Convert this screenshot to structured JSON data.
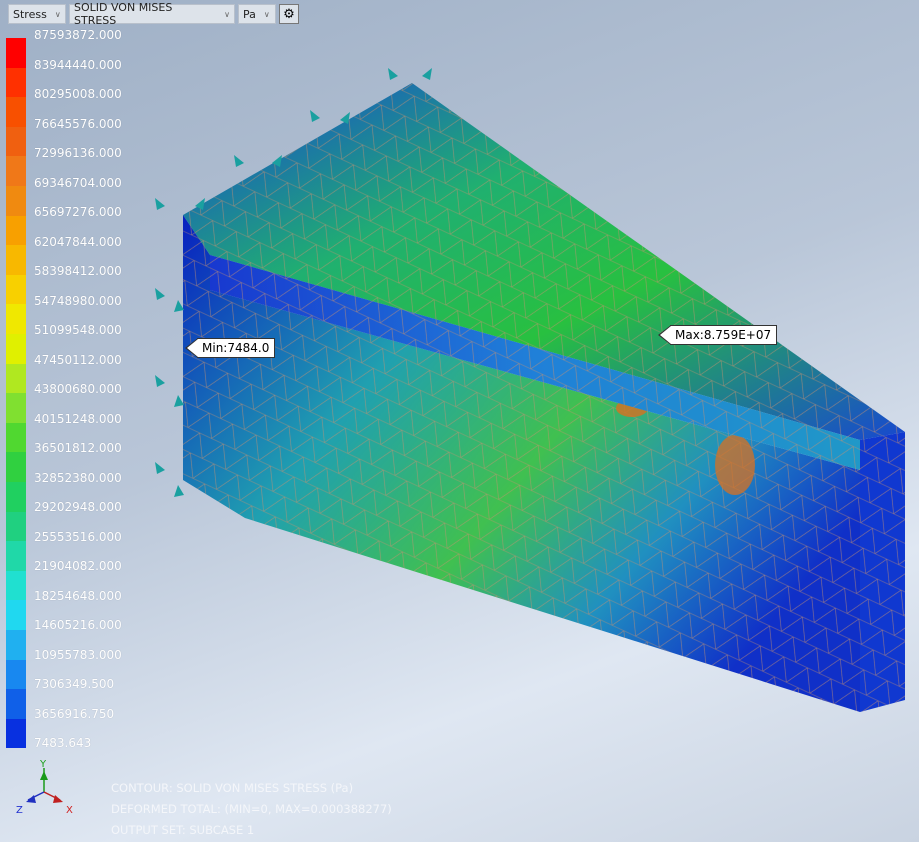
{
  "toolbar": {
    "result_type": "Stress",
    "component": "SOLID VON MISES STRESS",
    "unit": "Pa",
    "settings_icon": "gear-icon"
  },
  "legend": {
    "labels": [
      "87593872.000",
      "83944440.000",
      "80295008.000",
      "76645576.000",
      "72996136.000",
      "69346704.000",
      "65697276.000",
      "62047844.000",
      "58398412.000",
      "54748980.000",
      "51099548.000",
      "47450112.000",
      "43800680.000",
      "40151248.000",
      "36501812.000",
      "32852380.000",
      "29202948.000",
      "25553516.000",
      "21904082.000",
      "18254648.000",
      "14605216.000",
      "10955783.000",
      "7306349.500",
      "3656916.750",
      "7483.643"
    ],
    "colors": [
      "#ff0000",
      "#ff3000",
      "#f85000",
      "#f06010",
      "#f07818",
      "#f08a10",
      "#f8a000",
      "#f8b800",
      "#f8d000",
      "#f0e800",
      "#e0f000",
      "#b0e820",
      "#80e030",
      "#50d830",
      "#30d040",
      "#20d060",
      "#20d080",
      "#20d8a8",
      "#20e0d0",
      "#20d8f0",
      "#20b0f0",
      "#1888f0",
      "#1060e8",
      "#0830e0"
    ]
  },
  "markers": {
    "max": "Max:8.759E+07",
    "min": "Min:7484.0"
  },
  "triad": {
    "x": "X",
    "y": "Y",
    "z": "Z"
  },
  "info": {
    "line1": "CONTOUR: SOLID VON MISES STRESS (Pa)",
    "line2": "DEFORMED TOTAL: (MIN=0, MAX=0.000388277)",
    "line3": "OUTPUT SET: SUBCASE 1"
  }
}
